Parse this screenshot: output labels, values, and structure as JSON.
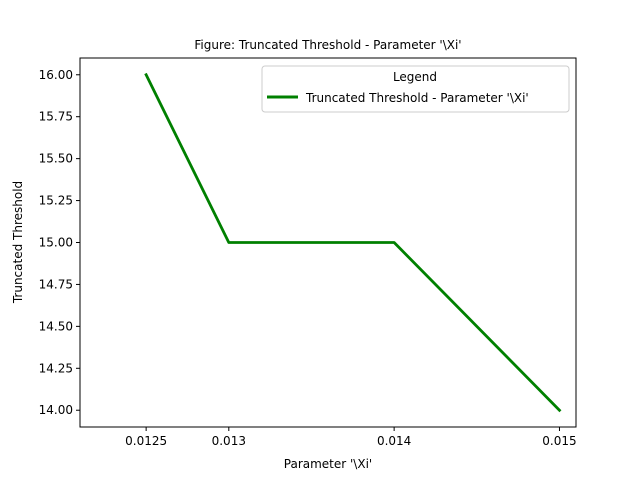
{
  "chart_data": {
    "type": "line",
    "title": "Figure: Truncated Threshold - Parameter '\\Xi'",
    "xlabel": "Parameter '\\Xi'",
    "ylabel": "Truncated Threshold",
    "x": [
      0.0125,
      0.013,
      0.014,
      0.015
    ],
    "x_tick_labels": [
      "0.0125",
      "0.013",
      "0.014",
      "0.015"
    ],
    "y_ticks": [
      14.0,
      14.25,
      14.5,
      14.75,
      15.0,
      15.25,
      15.5,
      15.75,
      16.0
    ],
    "y_tick_labels": [
      "14.00",
      "14.25",
      "14.50",
      "14.75",
      "15.00",
      "15.25",
      "15.50",
      "15.75",
      "16.00"
    ],
    "xlim": [
      0.0121,
      0.0151
    ],
    "ylim": [
      13.9,
      16.1
    ],
    "grid": false,
    "legend": {
      "title": "Legend",
      "placement": "top-right"
    },
    "series": [
      {
        "name": "Truncated Threshold - Parameter '\\Xi'",
        "color": "#008000",
        "values": [
          16.0,
          15.0,
          15.0,
          14.0
        ]
      }
    ]
  }
}
